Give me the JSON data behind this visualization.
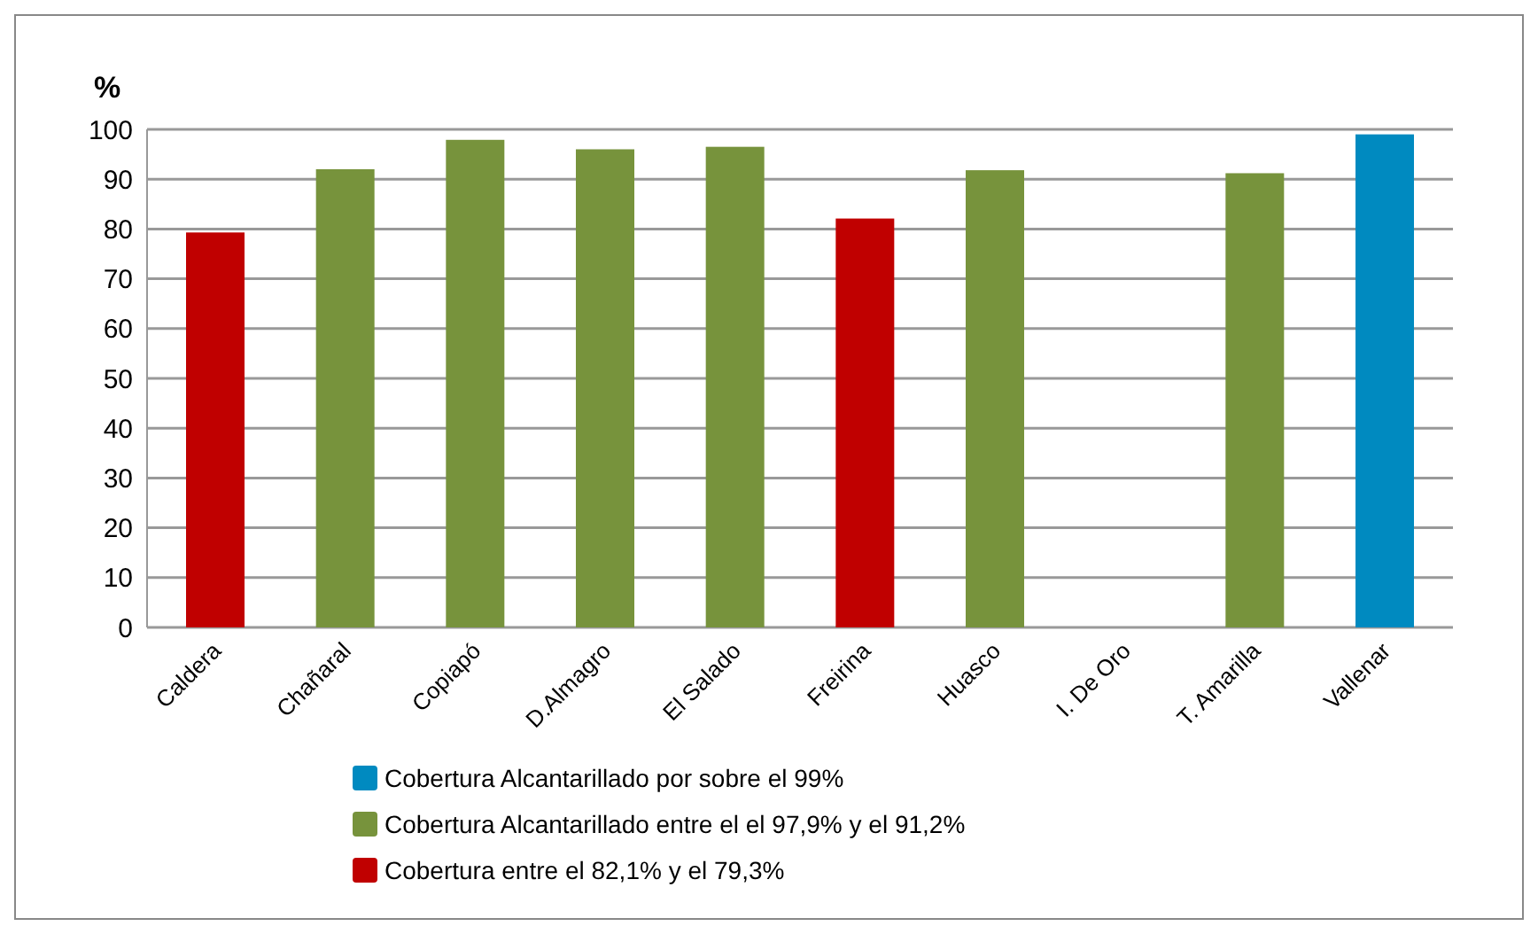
{
  "chart_data": {
    "type": "bar",
    "ylabel": "%",
    "categories": [
      "Caldera",
      "Chañaral",
      "Copiapó",
      "D.Almagro",
      "El Salado",
      "Freirina",
      "Huasco",
      "I. De Oro",
      "T. Amarilla",
      "Vallenar"
    ],
    "series": [
      {
        "name": "Cobertura  Alcantarillado por sobre el 99%",
        "color": "#008ac0",
        "values": [
          null,
          null,
          null,
          null,
          null,
          null,
          null,
          null,
          null,
          99
        ]
      },
      {
        "name": "Cobertura  Alcantarillado entre el el 97,9% y el 91,2%",
        "color": "#77933c",
        "values": [
          null,
          92,
          97.9,
          96,
          96.5,
          null,
          91.8,
          null,
          91.2,
          null
        ]
      },
      {
        "name": "Cobertura  entre el 82,1% y el 79,3%",
        "color": "#c00000",
        "values": [
          79.3,
          null,
          null,
          null,
          null,
          82.1,
          null,
          null,
          null,
          null
        ]
      }
    ],
    "ylim": [
      0,
      100
    ],
    "yticks": [
      0,
      10,
      20,
      30,
      40,
      50,
      60,
      70,
      80,
      90,
      100
    ],
    "grid": "y",
    "legend": "bottom"
  }
}
